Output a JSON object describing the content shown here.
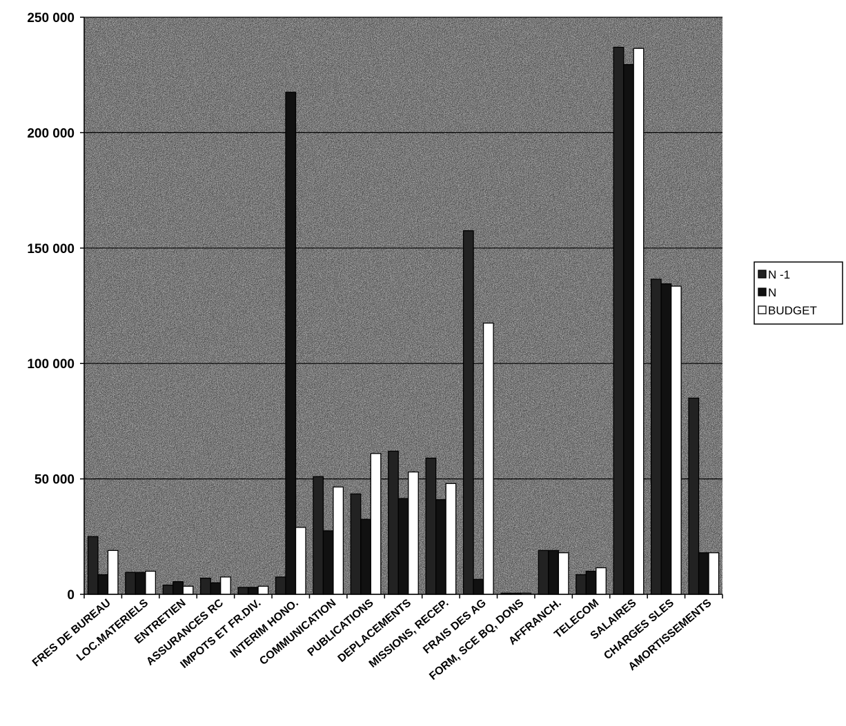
{
  "chart_data": {
    "type": "bar",
    "title": "",
    "xlabel": "",
    "ylabel": "",
    "ylim": [
      0,
      250000
    ],
    "yticks": [
      0,
      50000,
      100000,
      150000,
      200000,
      250000
    ],
    "ytick_labels": [
      "0",
      "50 000",
      "100 000",
      "150 000",
      "200 000",
      "250 000"
    ],
    "grid": true,
    "legend_position": "right",
    "categories": [
      "FRES DE BUREAU",
      "LOC.MATERIELS",
      "ENTRETIEN",
      "ASSURANCES RC",
      "IMPOTS ET FR.DIV.",
      "INTERIM HONO.",
      "COMMUNICATION",
      "PUBLICATIONS",
      "DEPLACEMENTS",
      "MISSIONS, RECEP.",
      "FRAIS DES AG",
      "FORM, SCE BQ, DONS",
      "AFFRANCH.",
      "TELECOM",
      "SALAIRES",
      "CHARGES SLES",
      "AMORTISSEMENTS"
    ],
    "series": [
      {
        "name": "N -1",
        "color": "#222222",
        "values": [
          25000,
          9500,
          4000,
          7000,
          3000,
          7500,
          51000,
          43500,
          62000,
          59000,
          157500,
          500,
          19000,
          8500,
          237000,
          136500,
          85000
        ]
      },
      {
        "name": "N",
        "color": "#111111",
        "values": [
          8500,
          9500,
          5500,
          5000,
          3000,
          217500,
          27500,
          32500,
          41500,
          41000,
          6500,
          500,
          19000,
          10000,
          229500,
          134500,
          18000
        ]
      },
      {
        "name": "BUDGET",
        "color": "#ffffff",
        "values": [
          19000,
          10000,
          3500,
          7500,
          3500,
          29000,
          46500,
          61000,
          53000,
          48000,
          117500,
          500,
          18000,
          11500,
          236500,
          133500,
          18000
        ]
      }
    ]
  }
}
